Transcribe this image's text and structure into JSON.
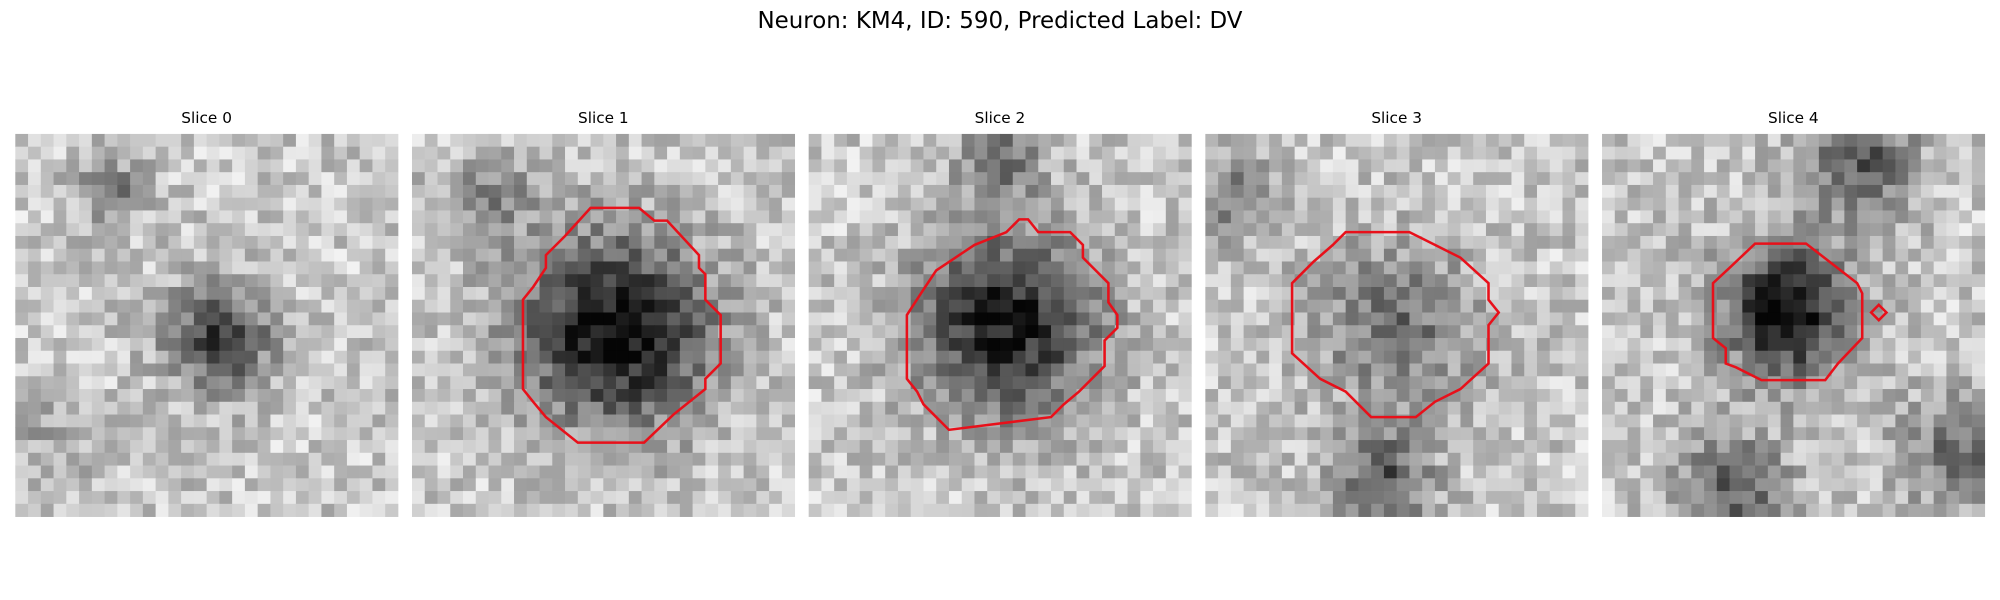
{
  "header": {
    "title": "Neuron: KM4, ID: 590, Predicted Label: DV"
  },
  "panels": [
    {
      "title": "Slice 0"
    },
    {
      "title": "Slice 1"
    },
    {
      "title": "Slice 2"
    },
    {
      "title": "Slice 3"
    },
    {
      "title": "Slice 4"
    }
  ]
}
